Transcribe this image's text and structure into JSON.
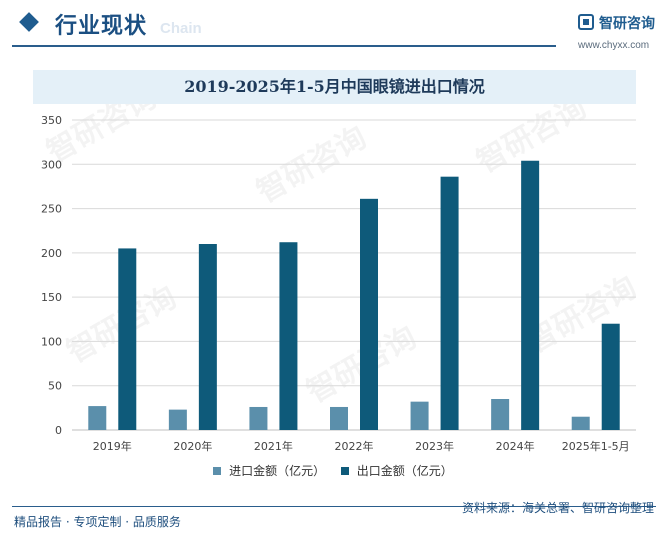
{
  "header": {
    "title": "行业现状",
    "subtitle": "Chain",
    "logo_name": "智研咨询",
    "logo_url": "www.chyxx.com"
  },
  "footer": {
    "left_text": "精品报告 · 专项定制 · 品质服务",
    "source_text": "资料来源：海关总署、智研咨询整理"
  },
  "watermark_text": "智研咨询",
  "colors": {
    "import": "#5b8fab",
    "export": "#0e5a7a",
    "grid": "#d9d9d9",
    "axis_text": "#444444"
  },
  "chart_data": {
    "type": "bar",
    "title": "2019-2025年1-5月中国眼镜进出口情况",
    "categories": [
      "2019年",
      "2020年",
      "2021年",
      "2022年",
      "2023年",
      "2024年",
      "2025年1-5月"
    ],
    "series": [
      {
        "name": "进口金额（亿元）",
        "values": [
          27,
          23,
          26,
          26,
          32,
          35,
          15
        ]
      },
      {
        "name": "出口金额（亿元）",
        "values": [
          205,
          210,
          212,
          261,
          286,
          304,
          120
        ]
      }
    ],
    "yticks": [
      0,
      50,
      100,
      150,
      200,
      250,
      300,
      350
    ],
    "ylim": [
      0,
      350
    ],
    "xlabel": "",
    "ylabel": "",
    "grid": true,
    "legend_position": "bottom"
  }
}
